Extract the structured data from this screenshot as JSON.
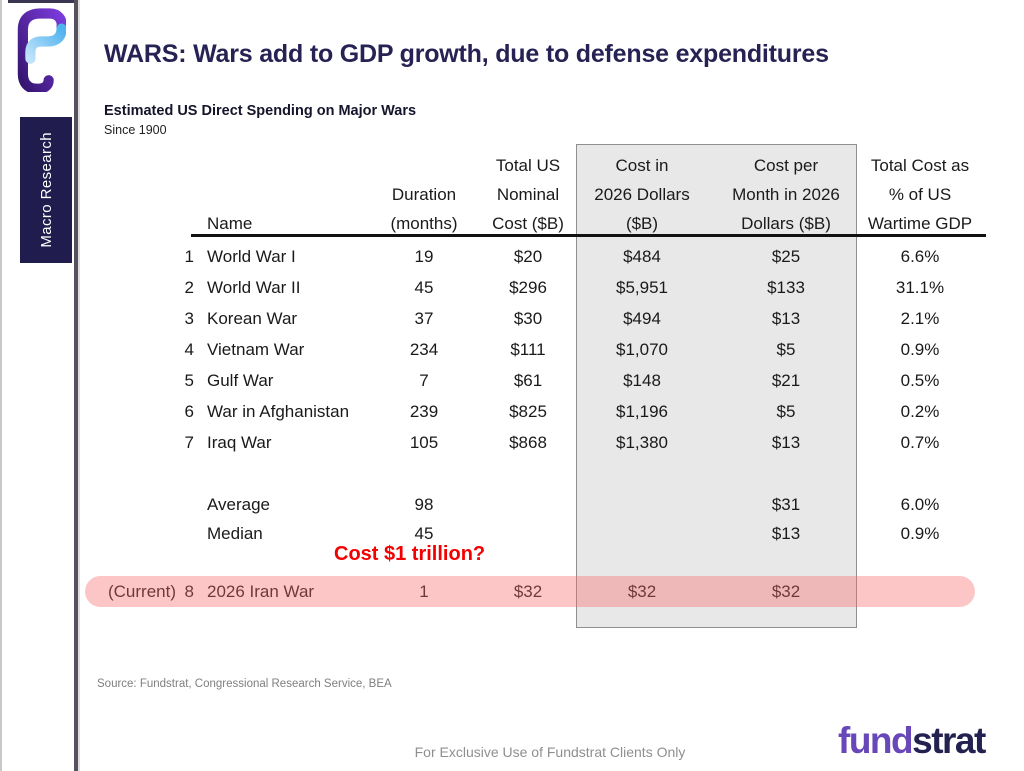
{
  "brand": {
    "macro_label": "Macro Research",
    "logo_fund": "fund",
    "logo_strat": "strat",
    "colors": {
      "navy": "#201d4e",
      "purple": "#6847b8",
      "title_navy": "#262253",
      "accent_red": "#f40000",
      "pink_highlight": "rgba(249,106,106,0.38)",
      "gray_box": "#e8e8e8"
    }
  },
  "header": {
    "title": "WARS: Wars add to GDP growth, due to defense expenditures"
  },
  "exhibit": {
    "title": "Estimated US Direct Spending on Major Wars",
    "subtitle": "Since 1900"
  },
  "chart_data": {
    "type": "table",
    "title": "Estimated US Direct Spending on Major Wars",
    "subtitle": "Since 1900",
    "column_headers": [
      {
        "id": "current",
        "lines": [
          "",
          "",
          ""
        ]
      },
      {
        "id": "num",
        "lines": [
          "",
          "",
          ""
        ]
      },
      {
        "id": "name",
        "lines": [
          "",
          "",
          "Name"
        ]
      },
      {
        "id": "duration",
        "lines": [
          "",
          "Duration",
          "(months)"
        ]
      },
      {
        "id": "nominal",
        "lines": [
          "Total US",
          "Nominal",
          "Cost ($B)"
        ]
      },
      {
        "id": "cost_2026",
        "lines": [
          "Cost in",
          "2026 Dollars",
          "($B)"
        ]
      },
      {
        "id": "cost_month",
        "lines": [
          "Cost per",
          "Month in 2026",
          "Dollars ($B)"
        ]
      },
      {
        "id": "gdp",
        "lines": [
          "Total Cost as",
          "% of US",
          "Wartime GDP"
        ]
      }
    ],
    "rows": [
      {
        "current": "",
        "num": "1",
        "name": "World War I",
        "duration": "19",
        "nominal": "$20",
        "cost_2026": "$484",
        "cost_month": "$25",
        "gdp": "6.6%"
      },
      {
        "current": "",
        "num": "2",
        "name": "World War II",
        "duration": "45",
        "nominal": "$296",
        "cost_2026": "$5,951",
        "cost_month": "$133",
        "gdp": "31.1%"
      },
      {
        "current": "",
        "num": "3",
        "name": "Korean War",
        "duration": "37",
        "nominal": "$30",
        "cost_2026": "$494",
        "cost_month": "$13",
        "gdp": "2.1%"
      },
      {
        "current": "",
        "num": "4",
        "name": "Vietnam War",
        "duration": "234",
        "nominal": "$111",
        "cost_2026": "$1,070",
        "cost_month": "$5",
        "gdp": "0.9%"
      },
      {
        "current": "",
        "num": "5",
        "name": "Gulf War",
        "duration": "7",
        "nominal": "$61",
        "cost_2026": "$148",
        "cost_month": "$21",
        "gdp": "0.5%"
      },
      {
        "current": "",
        "num": "6",
        "name": "War in Afghanistan",
        "duration": "239",
        "nominal": "$825",
        "cost_2026": "$1,196",
        "cost_month": "$5",
        "gdp": "0.2%"
      },
      {
        "current": "",
        "num": "7",
        "name": "Iraq War",
        "duration": "105",
        "nominal": "$868",
        "cost_2026": "$1,380",
        "cost_month": "$13",
        "gdp": "0.7%"
      }
    ],
    "summary_rows": [
      {
        "current": "",
        "num": "",
        "name": "Average",
        "duration": "98",
        "nominal": "",
        "cost_2026": "",
        "cost_month": "$31",
        "gdp": "6.0%"
      },
      {
        "current": "",
        "num": "",
        "name": "Median",
        "duration": "45",
        "nominal": "",
        "cost_2026": "",
        "cost_month": "$13",
        "gdp": "0.9%"
      }
    ],
    "current_row": {
      "current": "(Current)",
      "num": "8",
      "name": "2026 Iran War",
      "duration": "1",
      "nominal": "$32",
      "cost_2026": "$32",
      "cost_month": "$32",
      "gdp": ""
    }
  },
  "annotation": {
    "text": "Cost $1 trillion?"
  },
  "source": {
    "text": "Source: Fundstrat, Congressional Research Service, BEA"
  },
  "footer": {
    "disclaimer": "For Exclusive Use of Fundstrat Clients Only"
  }
}
